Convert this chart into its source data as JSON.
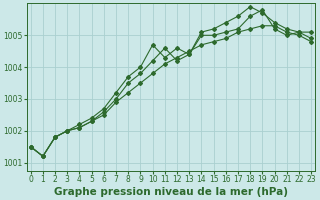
{
  "title": "Graphe pression niveau de la mer (hPa)",
  "x": [
    0,
    1,
    2,
    3,
    4,
    5,
    6,
    7,
    8,
    9,
    10,
    11,
    12,
    13,
    14,
    15,
    16,
    17,
    18,
    19,
    20,
    21,
    22,
    23
  ],
  "line1": [
    1001.5,
    1001.2,
    1001.8,
    1002.0,
    1002.1,
    1002.3,
    1002.6,
    1003.0,
    1003.5,
    1003.8,
    1004.2,
    1004.6,
    1004.2,
    1004.4,
    1005.0,
    1005.0,
    1005.1,
    1005.2,
    1005.6,
    1005.8,
    1005.2,
    1005.0,
    1005.1,
    1005.1
  ],
  "line2": [
    1001.5,
    1001.2,
    1001.8,
    1002.0,
    1002.2,
    1002.4,
    1002.7,
    1003.2,
    1003.7,
    1004.0,
    1004.7,
    1004.3,
    1004.6,
    1004.4,
    1005.1,
    1005.2,
    1005.4,
    1005.6,
    1005.9,
    1005.7,
    1005.4,
    1005.2,
    1005.1,
    1004.9
  ],
  "line3": [
    1001.5,
    1001.2,
    1001.8,
    1002.0,
    1002.1,
    1002.3,
    1002.5,
    1002.9,
    1003.2,
    1003.5,
    1003.8,
    1004.1,
    1004.3,
    1004.5,
    1004.7,
    1004.8,
    1004.9,
    1005.1,
    1005.2,
    1005.3,
    1005.3,
    1005.1,
    1005.0,
    1004.8
  ],
  "line_color": "#2d6a2d",
  "bg_color": "#cce8e8",
  "grid_color": "#aad0d0",
  "ylim": [
    1000.75,
    1006.0
  ],
  "yticks": [
    1001,
    1002,
    1003,
    1004,
    1005
  ],
  "xlim": [
    -0.3,
    23.3
  ],
  "xticks": [
    0,
    1,
    2,
    3,
    4,
    5,
    6,
    7,
    8,
    9,
    10,
    11,
    12,
    13,
    14,
    15,
    16,
    17,
    18,
    19,
    20,
    21,
    22,
    23
  ],
  "title_fontsize": 7.5,
  "tick_fontsize": 5.5
}
